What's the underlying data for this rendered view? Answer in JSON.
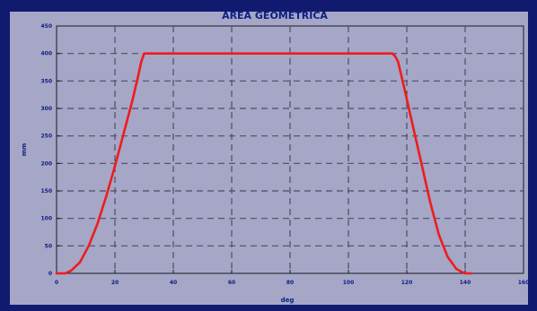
{
  "chart_data": {
    "type": "line",
    "title": "AREA GEOMETRICA",
    "xlabel": "deg",
    "ylabel": "mm",
    "xlim": [
      0,
      160
    ],
    "ylim": [
      0,
      450
    ],
    "xticks": [
      0,
      20,
      40,
      60,
      80,
      100,
      120,
      140,
      160
    ],
    "yticks": [
      0,
      50,
      100,
      150,
      200,
      250,
      300,
      350,
      400,
      450
    ],
    "grid": true,
    "series": [
      {
        "color": "#ee1c1c",
        "x": [
          0,
          3,
          5,
          8,
          11,
          14,
          17,
          20,
          23,
          26,
          28,
          29,
          30,
          115,
          116,
          117,
          119,
          122,
          125,
          128,
          131,
          134,
          137,
          139,
          140,
          141,
          142
        ],
        "y": [
          0,
          0,
          5,
          20,
          50,
          90,
          140,
          195,
          255,
          315,
          360,
          385,
          400,
          400,
          395,
          385,
          340,
          270,
          200,
          130,
          70,
          30,
          8,
          2,
          0,
          0,
          0
        ]
      }
    ],
    "colors": {
      "frame": "#101b70",
      "plot_background": "#a6a6c7",
      "grid": "#4d4d62",
      "text": "#0c1e84",
      "line": "#ee1c1c"
    }
  }
}
